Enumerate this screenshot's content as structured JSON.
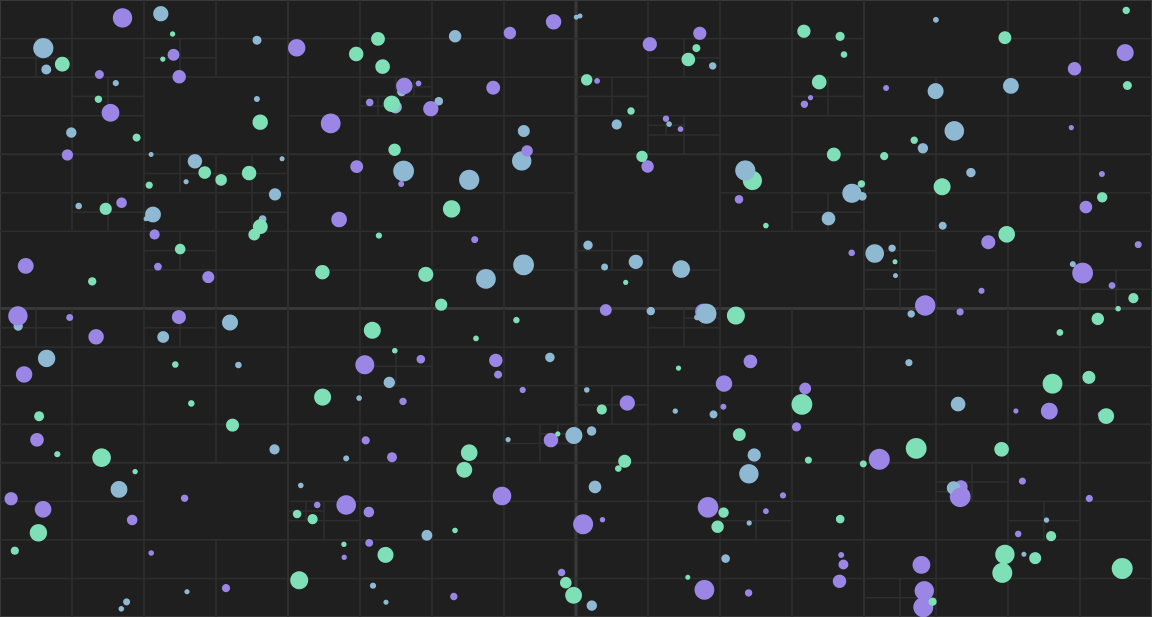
{
  "colors": {
    "background": "#1f1f1f",
    "grid_major": "#383838",
    "grid_minor": "#2e2e2e",
    "palette": [
      "#7fe0b8",
      "#8fb9d3",
      "#9b86e6"
    ]
  },
  "dot_count": 300,
  "random_seed": 20250917
}
